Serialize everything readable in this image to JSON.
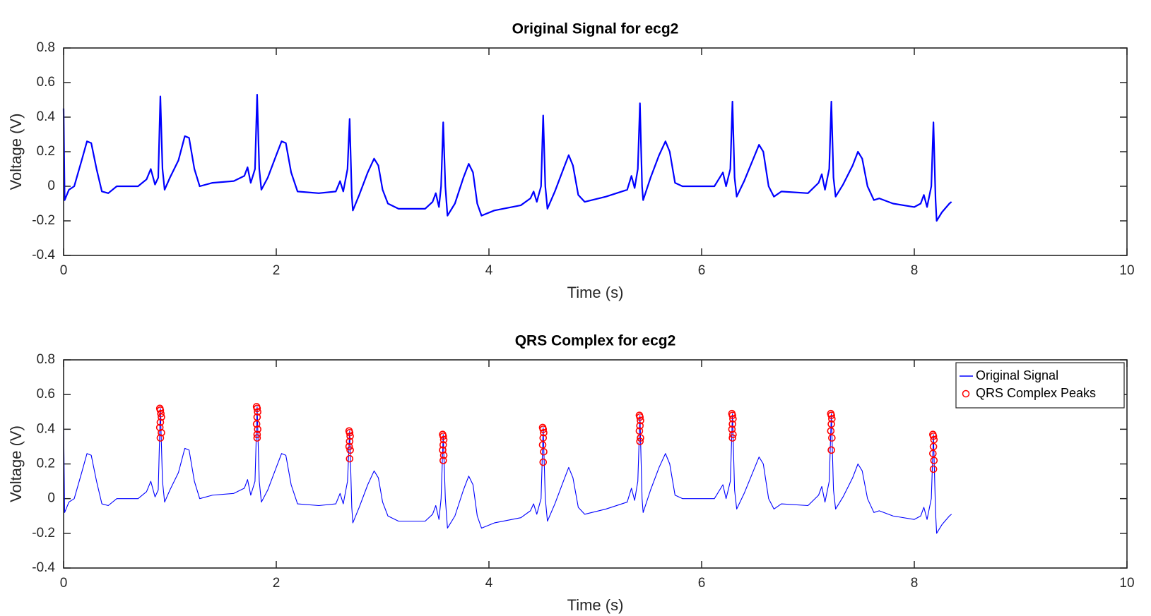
{
  "chart_data": [
    {
      "type": "line",
      "title": "Original Signal for ecg2",
      "x_label": "Time (s)",
      "y_label": "Voltage (V)",
      "xlim": [
        0,
        10
      ],
      "ylim": [
        -0.4,
        0.8
      ],
      "xticks": [
        0,
        2,
        4,
        6,
        8,
        10
      ],
      "yticks": [
        -0.4,
        -0.2,
        0,
        0.2,
        0.4,
        0.6,
        0.8
      ],
      "grid": false,
      "series": [
        {
          "type": "line",
          "color": "#0000ff",
          "x": [
            0,
            0.01,
            0.05,
            0.1,
            0.17,
            0.22,
            0.26,
            0.31,
            0.36,
            0.42,
            0.5,
            0.7,
            0.78,
            0.82,
            0.86,
            0.89,
            0.91,
            0.93,
            0.95,
            1.0,
            1.08,
            1.14,
            1.18,
            1.23,
            1.28,
            1.4,
            1.6,
            1.7,
            1.73,
            1.76,
            1.8,
            1.82,
            1.84,
            1.86,
            1.92,
            2.0,
            2.05,
            2.09,
            2.14,
            2.2,
            2.4,
            2.56,
            2.6,
            2.63,
            2.67,
            2.69,
            2.71,
            2.72,
            2.78,
            2.86,
            2.92,
            2.96,
            3.0,
            3.05,
            3.15,
            3.4,
            3.47,
            3.5,
            3.53,
            3.55,
            3.57,
            3.59,
            3.61,
            3.68,
            3.76,
            3.81,
            3.85,
            3.89,
            3.93,
            4.05,
            4.3,
            4.39,
            4.42,
            4.45,
            4.49,
            4.51,
            4.53,
            4.55,
            4.62,
            4.7,
            4.75,
            4.79,
            4.84,
            4.9,
            5.1,
            5.3,
            5.34,
            5.37,
            5.4,
            5.42,
            5.44,
            5.45,
            5.52,
            5.6,
            5.66,
            5.7,
            5.75,
            5.82,
            6.0,
            6.12,
            6.2,
            6.23,
            6.27,
            6.29,
            6.31,
            6.33,
            6.4,
            6.48,
            6.54,
            6.58,
            6.63,
            6.68,
            6.75,
            7.0,
            7.1,
            7.13,
            7.16,
            7.2,
            7.22,
            7.24,
            7.26,
            7.33,
            7.42,
            7.47,
            7.51,
            7.56,
            7.62,
            7.67,
            7.8,
            8.0,
            8.06,
            8.09,
            8.12,
            8.16,
            8.18,
            8.2,
            8.21,
            8.26,
            8.33,
            8.35
          ],
          "values": [
            0.45,
            -0.08,
            -0.02,
            0.0,
            0.15,
            0.26,
            0.25,
            0.1,
            -0.03,
            -0.04,
            0.0,
            0.0,
            0.04,
            0.1,
            0.01,
            0.05,
            0.52,
            0.1,
            -0.02,
            0.05,
            0.15,
            0.29,
            0.28,
            0.1,
            0.0,
            0.02,
            0.03,
            0.06,
            0.11,
            0.02,
            0.1,
            0.53,
            0.1,
            -0.02,
            0.05,
            0.18,
            0.26,
            0.25,
            0.08,
            -0.03,
            -0.04,
            -0.03,
            0.03,
            -0.03,
            0.1,
            0.39,
            -0.05,
            -0.14,
            -0.05,
            0.08,
            0.16,
            0.12,
            -0.02,
            -0.1,
            -0.13,
            -0.13,
            -0.09,
            -0.04,
            -0.12,
            0.0,
            0.37,
            0.0,
            -0.17,
            -0.1,
            0.05,
            0.13,
            0.08,
            -0.1,
            -0.17,
            -0.14,
            -0.11,
            -0.07,
            -0.03,
            -0.09,
            0.0,
            0.41,
            0.0,
            -0.13,
            -0.03,
            0.1,
            0.18,
            0.12,
            -0.05,
            -0.09,
            -0.06,
            -0.02,
            0.06,
            -0.01,
            0.1,
            0.48,
            0.0,
            -0.08,
            0.05,
            0.18,
            0.26,
            0.2,
            0.02,
            0.0,
            0.0,
            0.0,
            0.08,
            0.0,
            0.1,
            0.49,
            0.05,
            -0.06,
            0.03,
            0.15,
            0.24,
            0.2,
            0.0,
            -0.06,
            -0.03,
            -0.04,
            0.02,
            0.07,
            -0.02,
            0.1,
            0.49,
            0.05,
            -0.06,
            0.01,
            0.12,
            0.2,
            0.16,
            0.0,
            -0.08,
            -0.07,
            -0.1,
            -0.12,
            -0.1,
            -0.05,
            -0.12,
            0.0,
            0.37,
            -0.08,
            -0.2,
            -0.15,
            -0.1,
            -0.09
          ]
        }
      ]
    },
    {
      "type": "line",
      "title": "QRS Complex for ecg2",
      "x_label": "Time (s)",
      "y_label": "Voltage (V)",
      "xlim": [
        0,
        10
      ],
      "ylim": [
        -0.4,
        0.8
      ],
      "xticks": [
        0,
        2,
        4,
        6,
        8,
        10
      ],
      "yticks": [
        -0.4,
        -0.2,
        0,
        0.2,
        0.4,
        0.6,
        0.8
      ],
      "grid": false,
      "legend": "northeast",
      "series": [
        {
          "type": "line",
          "name": "Original Signal",
          "color": "#0000ff",
          "x": [
            0,
            0.01,
            0.05,
            0.1,
            0.17,
            0.22,
            0.26,
            0.31,
            0.36,
            0.42,
            0.5,
            0.7,
            0.78,
            0.82,
            0.86,
            0.89,
            0.91,
            0.93,
            0.95,
            1.0,
            1.08,
            1.14,
            1.18,
            1.23,
            1.28,
            1.4,
            1.6,
            1.7,
            1.73,
            1.76,
            1.8,
            1.82,
            1.84,
            1.86,
            1.92,
            2.0,
            2.05,
            2.09,
            2.14,
            2.2,
            2.4,
            2.56,
            2.6,
            2.63,
            2.67,
            2.69,
            2.71,
            2.72,
            2.78,
            2.86,
            2.92,
            2.96,
            3.0,
            3.05,
            3.15,
            3.4,
            3.47,
            3.5,
            3.53,
            3.55,
            3.57,
            3.59,
            3.61,
            3.68,
            3.76,
            3.81,
            3.85,
            3.89,
            3.93,
            4.05,
            4.3,
            4.39,
            4.42,
            4.45,
            4.49,
            4.51,
            4.53,
            4.55,
            4.62,
            4.7,
            4.75,
            4.79,
            4.84,
            4.9,
            5.1,
            5.3,
            5.34,
            5.37,
            5.4,
            5.42,
            5.44,
            5.45,
            5.52,
            5.6,
            5.66,
            5.7,
            5.75,
            5.82,
            6.0,
            6.12,
            6.2,
            6.23,
            6.27,
            6.29,
            6.31,
            6.33,
            6.4,
            6.48,
            6.54,
            6.58,
            6.63,
            6.68,
            6.75,
            7.0,
            7.1,
            7.13,
            7.16,
            7.2,
            7.22,
            7.24,
            7.26,
            7.33,
            7.42,
            7.47,
            7.51,
            7.56,
            7.62,
            7.67,
            7.8,
            8.0,
            8.06,
            8.09,
            8.12,
            8.16,
            8.18,
            8.2,
            8.21,
            8.26,
            8.33,
            8.35
          ],
          "values": [
            0.45,
            -0.08,
            -0.02,
            0.0,
            0.15,
            0.26,
            0.25,
            0.1,
            -0.03,
            -0.04,
            0.0,
            0.0,
            0.04,
            0.1,
            0.01,
            0.05,
            0.52,
            0.1,
            -0.02,
            0.05,
            0.15,
            0.29,
            0.28,
            0.1,
            0.0,
            0.02,
            0.03,
            0.06,
            0.11,
            0.02,
            0.1,
            0.53,
            0.1,
            -0.02,
            0.05,
            0.18,
            0.26,
            0.25,
            0.08,
            -0.03,
            -0.04,
            -0.03,
            0.03,
            -0.03,
            0.1,
            0.39,
            -0.05,
            -0.14,
            -0.05,
            0.08,
            0.16,
            0.12,
            -0.02,
            -0.1,
            -0.13,
            -0.13,
            -0.09,
            -0.04,
            -0.12,
            0.0,
            0.37,
            0.0,
            -0.17,
            -0.1,
            0.05,
            0.13,
            0.08,
            -0.1,
            -0.17,
            -0.14,
            -0.11,
            -0.07,
            -0.03,
            -0.09,
            0.0,
            0.41,
            0.0,
            -0.13,
            -0.03,
            0.1,
            0.18,
            0.12,
            -0.05,
            -0.09,
            -0.06,
            -0.02,
            0.06,
            -0.01,
            0.1,
            0.48,
            0.0,
            -0.08,
            0.05,
            0.18,
            0.26,
            0.2,
            0.02,
            0.0,
            0.0,
            0.0,
            0.08,
            0.0,
            0.1,
            0.49,
            0.05,
            -0.06,
            0.03,
            0.15,
            0.24,
            0.2,
            0.0,
            -0.06,
            -0.03,
            -0.04,
            0.02,
            0.07,
            -0.02,
            0.1,
            0.49,
            0.05,
            -0.06,
            0.01,
            0.12,
            0.2,
            0.16,
            0.0,
            -0.08,
            -0.07,
            -0.1,
            -0.12,
            -0.1,
            -0.05,
            -0.12,
            0.0,
            0.37,
            -0.08,
            -0.2,
            -0.15,
            -0.1,
            -0.09
          ]
        },
        {
          "type": "scatter",
          "name": "QRS Complex Peaks",
          "color": "#ff0000",
          "x": [
            0.905,
            0.91,
            0.915,
            0.92,
            0.91,
            0.905,
            0.92,
            0.91,
            1.815,
            1.82,
            1.825,
            1.82,
            1.815,
            1.825,
            1.82,
            1.82,
            2.685,
            2.69,
            2.695,
            2.69,
            2.685,
            2.695,
            2.69,
            3.565,
            3.57,
            3.575,
            3.57,
            3.565,
            3.575,
            3.57,
            4.505,
            4.51,
            4.515,
            4.51,
            4.505,
            4.515,
            4.51,
            5.415,
            5.42,
            5.425,
            5.42,
            5.415,
            5.425,
            5.42,
            6.285,
            6.29,
            6.295,
            6.29,
            6.285,
            6.295,
            6.29,
            7.215,
            7.22,
            7.225,
            7.22,
            7.215,
            7.225,
            7.22,
            8.175,
            8.18,
            8.185,
            8.18,
            8.175,
            8.185,
            8.18
          ],
          "values": [
            0.52,
            0.51,
            0.49,
            0.47,
            0.44,
            0.41,
            0.38,
            0.35,
            0.53,
            0.52,
            0.5,
            0.47,
            0.43,
            0.4,
            0.37,
            0.35,
            0.39,
            0.38,
            0.36,
            0.33,
            0.3,
            0.28,
            0.23,
            0.37,
            0.36,
            0.34,
            0.31,
            0.28,
            0.25,
            0.22,
            0.41,
            0.4,
            0.38,
            0.35,
            0.31,
            0.27,
            0.21,
            0.48,
            0.47,
            0.45,
            0.42,
            0.39,
            0.35,
            0.33,
            0.49,
            0.48,
            0.46,
            0.43,
            0.4,
            0.37,
            0.35,
            0.49,
            0.48,
            0.46,
            0.43,
            0.39,
            0.35,
            0.28,
            0.37,
            0.36,
            0.34,
            0.3,
            0.26,
            0.22,
            0.17
          ]
        }
      ]
    }
  ]
}
